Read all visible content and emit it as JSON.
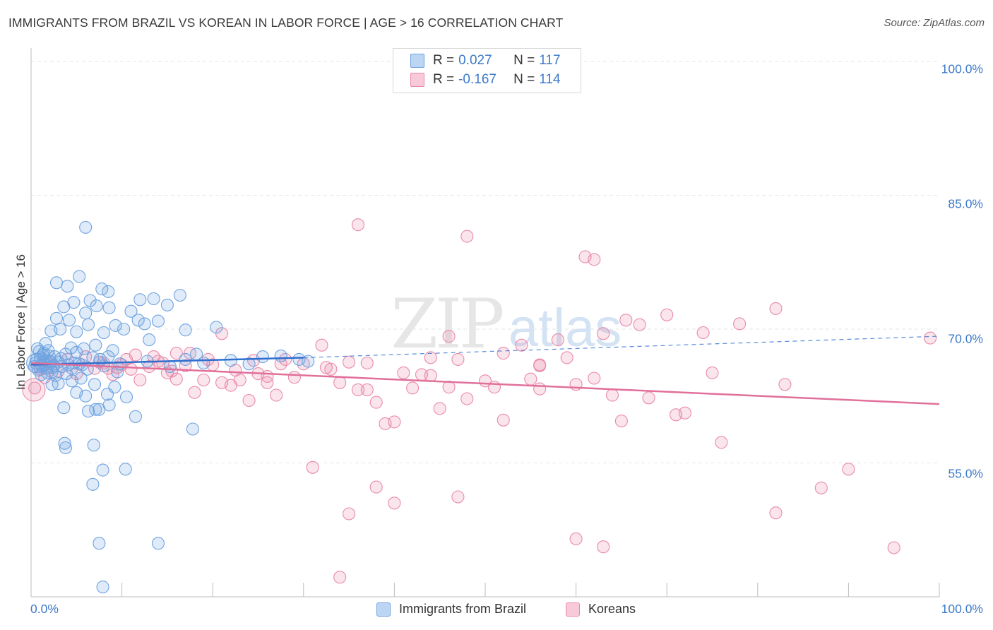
{
  "header": {
    "title": "IMMIGRANTS FROM BRAZIL VS KOREAN IN LABOR FORCE | AGE > 16 CORRELATION CHART",
    "source": "Source: ZipAtlas.com"
  },
  "watermark": {
    "zip": "ZIP",
    "atlas": "atlas"
  },
  "colors": {
    "blue": "#6fa3e0",
    "blue_fill": "rgba(111,163,224,0.22)",
    "blue_line": "#2f6fd0",
    "pink": "#ea8aa9",
    "pink_fill": "rgba(234,138,169,0.22)",
    "pink_line": "#e0709a",
    "tick_text": "#3d7ac9",
    "grid": "#e6e6e6"
  },
  "legend": {
    "rows": [
      {
        "r_label": "R =",
        "r_value": "0.027",
        "n_label": "N =",
        "n_value": "117"
      },
      {
        "r_label": "R =",
        "r_value": "-0.167",
        "n_label": "N =",
        "n_value": "114"
      }
    ]
  },
  "chart_data": {
    "type": "scatter",
    "title": "IMMIGRANTS FROM BRAZIL VS KOREAN IN LABOR FORCE | AGE > 16 CORRELATION CHART",
    "xlabel": "",
    "ylabel": "In Labor Force | Age > 16",
    "xlim": [
      0,
      100
    ],
    "ylim": [
      40,
      101.5
    ],
    "x_tick_labels": [
      "0.0%",
      "100.0%"
    ],
    "y_ticks": [
      55,
      70,
      85,
      100
    ],
    "y_tick_labels": [
      "55.0%",
      "70.0%",
      "85.0%",
      "100.0%"
    ],
    "legend_placement": "top-center",
    "series": [
      {
        "name": "Immigrants from Brazil",
        "r": 0.027,
        "n": 117,
        "trend": {
          "x0": 0,
          "y0": 66.0,
          "x1": 30,
          "y1": 66.8,
          "dash_to_x": 100,
          "dash_to_y": 69.2
        },
        "points": [
          [
            0.5,
            66.2
          ],
          [
            0.8,
            65.4
          ],
          [
            1.0,
            66.8
          ],
          [
            1.2,
            65.9
          ],
          [
            1.4,
            67.3
          ],
          [
            1.6,
            66.5
          ],
          [
            1.8,
            65.1
          ],
          [
            2.0,
            67.0
          ],
          [
            2.2,
            66.3
          ],
          [
            2.4,
            65.7
          ],
          [
            0.7,
            67.8
          ],
          [
            1.1,
            64.9
          ],
          [
            1.5,
            66.0
          ],
          [
            1.9,
            67.6
          ],
          [
            2.3,
            65.2
          ],
          [
            2.6,
            66.9
          ],
          [
            0.6,
            66.6
          ],
          [
            1.3,
            67.1
          ],
          [
            1.7,
            65.6
          ],
          [
            2.1,
            66.4
          ],
          [
            3.0,
            66.3
          ],
          [
            3.4,
            65.8
          ],
          [
            3.8,
            67.2
          ],
          [
            4.1,
            66.0
          ],
          [
            4.5,
            65.6
          ],
          [
            5.0,
            67.4
          ],
          [
            5.3,
            66.1
          ],
          [
            5.8,
            67.8
          ],
          [
            6.2,
            65.5
          ],
          [
            6.8,
            66.8
          ],
          [
            7.1,
            68.2
          ],
          [
            7.6,
            66.6
          ],
          [
            8.0,
            65.9
          ],
          [
            8.5,
            66.9
          ],
          [
            9.0,
            67.6
          ],
          [
            2.2,
            69.8
          ],
          [
            2.8,
            71.2
          ],
          [
            3.2,
            70.0
          ],
          [
            3.6,
            72.5
          ],
          [
            4.2,
            71.0
          ],
          [
            5.0,
            69.7
          ],
          [
            6.0,
            71.8
          ],
          [
            6.3,
            70.5
          ],
          [
            7.2,
            72.6
          ],
          [
            8.0,
            69.6
          ],
          [
            8.6,
            72.4
          ],
          [
            9.3,
            70.4
          ],
          [
            10.2,
            70.0
          ],
          [
            11.0,
            72.0
          ],
          [
            12.0,
            73.3
          ],
          [
            13.5,
            73.4
          ],
          [
            15.0,
            72.7
          ],
          [
            16.4,
            73.8
          ],
          [
            4.7,
            73.0
          ],
          [
            5.3,
            75.9
          ],
          [
            2.8,
            75.2
          ],
          [
            4.0,
            74.8
          ],
          [
            6.5,
            73.2
          ],
          [
            7.8,
            74.5
          ],
          [
            8.5,
            74.2
          ],
          [
            14.0,
            70.9
          ],
          [
            17.0,
            69.9
          ],
          [
            20.4,
            70.2
          ],
          [
            12.5,
            70.6
          ],
          [
            11.8,
            71.0
          ],
          [
            3.0,
            63.9
          ],
          [
            4.5,
            64.2
          ],
          [
            5.5,
            64.5
          ],
          [
            6.0,
            62.5
          ],
          [
            7.0,
            63.8
          ],
          [
            8.4,
            62.7
          ],
          [
            8.6,
            61.5
          ],
          [
            10.5,
            62.4
          ],
          [
            11.5,
            60.2
          ],
          [
            17.8,
            58.8
          ],
          [
            6.3,
            60.8
          ],
          [
            7.1,
            61.0
          ],
          [
            7.5,
            61.0
          ],
          [
            3.6,
            61.2
          ],
          [
            5.0,
            62.9
          ],
          [
            9.2,
            63.5
          ],
          [
            2.3,
            63.8
          ],
          [
            3.7,
            57.2
          ],
          [
            3.8,
            56.7
          ],
          [
            6.9,
            57.0
          ],
          [
            7.9,
            54.2
          ],
          [
            10.4,
            54.3
          ],
          [
            6.8,
            52.6
          ],
          [
            7.5,
            46.0
          ],
          [
            14.0,
            46.0
          ],
          [
            7.9,
            41.1
          ],
          [
            6.0,
            81.4
          ],
          [
            1.3,
            66.3
          ],
          [
            2.5,
            65.9
          ],
          [
            3.3,
            66.7
          ],
          [
            4.8,
            66.2
          ],
          [
            5.6,
            66.0
          ],
          [
            9.8,
            66.1
          ],
          [
            12.8,
            66.4
          ],
          [
            17.0,
            66.6
          ],
          [
            19.0,
            66.2
          ],
          [
            22.0,
            66.5
          ],
          [
            25.5,
            66.9
          ],
          [
            27.5,
            67.0
          ],
          [
            29.5,
            66.6
          ],
          [
            30.5,
            66.4
          ],
          [
            24.0,
            66.1
          ],
          [
            15.3,
            65.8
          ],
          [
            18.2,
            67.2
          ],
          [
            2.7,
            64.8
          ],
          [
            1.6,
            68.4
          ],
          [
            0.4,
            65.8
          ],
          [
            0.9,
            67.5
          ],
          [
            3.9,
            65.0
          ],
          [
            4.4,
            67.9
          ],
          [
            9.5,
            65.2
          ],
          [
            13.0,
            68.8
          ]
        ]
      },
      {
        "name": "Koreans",
        "r": -0.167,
        "n": 114,
        "trend": {
          "x0": 0,
          "y0": 66.2,
          "x1": 100,
          "y1": 61.6
        },
        "points": [
          [
            0.4,
            63.4
          ],
          [
            1.0,
            65.5
          ],
          [
            1.5,
            64.6
          ],
          [
            2.0,
            66.1
          ],
          [
            3.0,
            65.3
          ],
          [
            4.0,
            66.6
          ],
          [
            5.0,
            65.0
          ],
          [
            6.0,
            66.9
          ],
          [
            7.0,
            65.6
          ],
          [
            8.0,
            66.2
          ],
          [
            9.0,
            64.9
          ],
          [
            10.0,
            66.0
          ],
          [
            11.0,
            65.5
          ],
          [
            12.0,
            64.3
          ],
          [
            13.0,
            65.8
          ],
          [
            14.0,
            66.4
          ],
          [
            15.0,
            65.1
          ],
          [
            16.0,
            64.4
          ],
          [
            17.0,
            65.9
          ],
          [
            18.0,
            62.9
          ],
          [
            19.0,
            64.3
          ],
          [
            20.0,
            66.0
          ],
          [
            21.0,
            64.0
          ],
          [
            22.0,
            63.7
          ],
          [
            23.0,
            64.3
          ],
          [
            24.0,
            62.0
          ],
          [
            25.0,
            65.0
          ],
          [
            26.0,
            64.7
          ],
          [
            27.0,
            62.6
          ],
          [
            28.0,
            66.6
          ],
          [
            29.0,
            64.6
          ],
          [
            30.0,
            66.1
          ],
          [
            32.0,
            68.2
          ],
          [
            33.0,
            65.5
          ],
          [
            34.0,
            64.0
          ],
          [
            35.0,
            66.3
          ],
          [
            36.0,
            63.2
          ],
          [
            37.0,
            63.2
          ],
          [
            38.0,
            61.8
          ],
          [
            39.0,
            59.4
          ],
          [
            40.0,
            59.6
          ],
          [
            42.0,
            63.4
          ],
          [
            43.0,
            64.9
          ],
          [
            44.0,
            64.8
          ],
          [
            45.0,
            61.1
          ],
          [
            46.0,
            63.5
          ],
          [
            47.0,
            66.6
          ],
          [
            48.0,
            62.2
          ],
          [
            50.0,
            64.2
          ],
          [
            52.0,
            59.8
          ],
          [
            55.0,
            64.4
          ],
          [
            56.0,
            66.0
          ],
          [
            60.0,
            63.8
          ],
          [
            62.0,
            64.5
          ],
          [
            64.0,
            62.6
          ],
          [
            65.0,
            59.7
          ],
          [
            68.0,
            62.3
          ],
          [
            71.0,
            60.4
          ],
          [
            75.0,
            65.1
          ],
          [
            83.0,
            63.8
          ],
          [
            36.0,
            81.7
          ],
          [
            48.0,
            80.4
          ],
          [
            61.0,
            78.1
          ],
          [
            62.0,
            77.8
          ],
          [
            46.0,
            69.2
          ],
          [
            54.0,
            68.2
          ],
          [
            52.0,
            67.3
          ],
          [
            58.0,
            68.8
          ],
          [
            59.0,
            66.8
          ],
          [
            63.0,
            69.5
          ],
          [
            70.0,
            71.6
          ],
          [
            78.0,
            70.6
          ],
          [
            67.0,
            70.5
          ],
          [
            82.0,
            72.3
          ],
          [
            65.5,
            71.0
          ],
          [
            74.0,
            69.6
          ],
          [
            56.0,
            65.9
          ],
          [
            44.0,
            66.8
          ],
          [
            37.0,
            66.2
          ],
          [
            41.0,
            65.1
          ],
          [
            31.0,
            54.5
          ],
          [
            38.0,
            52.3
          ],
          [
            35.0,
            49.3
          ],
          [
            34.0,
            42.2
          ],
          [
            40.0,
            50.5
          ],
          [
            47.0,
            51.2
          ],
          [
            60.0,
            46.5
          ],
          [
            63.0,
            45.6
          ],
          [
            76.0,
            57.3
          ],
          [
            82.0,
            49.4
          ],
          [
            87.0,
            52.2
          ],
          [
            90.0,
            54.3
          ],
          [
            95.0,
            45.5
          ],
          [
            99.0,
            69.0
          ],
          [
            72.0,
            60.6
          ],
          [
            56.0,
            63.3
          ],
          [
            51.0,
            63.5
          ],
          [
            32.5,
            65.7
          ],
          [
            27.5,
            66.1
          ],
          [
            26.0,
            64.0
          ],
          [
            24.5,
            66.5
          ],
          [
            22.5,
            65.4
          ],
          [
            21.0,
            69.5
          ],
          [
            19.5,
            66.6
          ],
          [
            17.5,
            67.3
          ],
          [
            16.0,
            67.3
          ],
          [
            15.5,
            65.3
          ],
          [
            14.5,
            66.2
          ],
          [
            13.5,
            66.9
          ],
          [
            11.5,
            67.1
          ],
          [
            10.5,
            66.6
          ],
          [
            9.5,
            65.7
          ],
          [
            8.5,
            65.6
          ],
          [
            7.5,
            66.3
          ]
        ]
      }
    ]
  },
  "bottom_legend": {
    "items": [
      {
        "label": "Immigrants from Brazil"
      },
      {
        "label": "Koreans"
      }
    ]
  }
}
